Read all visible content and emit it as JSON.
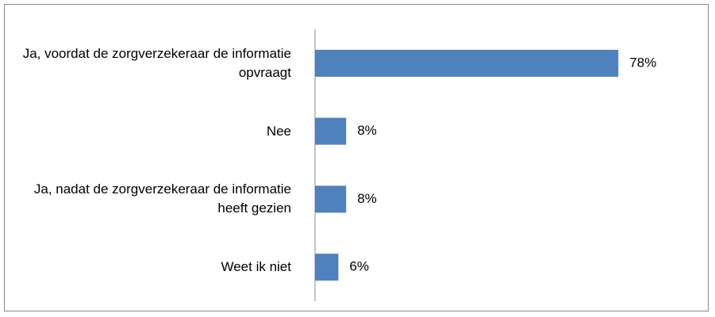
{
  "chart_data": {
    "type": "bar",
    "orientation": "horizontal",
    "categories": [
      "Ja, voordat de zorgverzekeraar de informatie opvraagt",
      "Nee",
      "Ja, nadat de zorgverzekeraar de informatie heeft gezien",
      "Weet ik niet"
    ],
    "values": [
      78,
      8,
      8,
      6
    ],
    "value_labels": [
      "78%",
      "8%",
      "8%",
      "6%"
    ],
    "color": "#4f81bd"
  }
}
